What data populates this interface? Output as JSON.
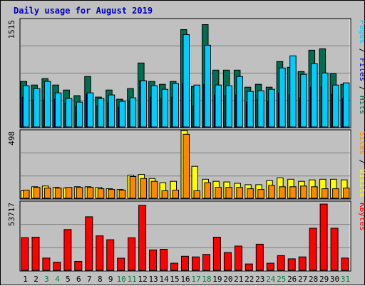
{
  "chart_data": {
    "type": "bar",
    "title": "Daily usage for August 2019",
    "categories": [
      "1",
      "2",
      "3",
      "4",
      "5",
      "6",
      "7",
      "8",
      "9",
      "10",
      "11",
      "12",
      "13",
      "14",
      "15",
      "16",
      "17",
      "18",
      "19",
      "20",
      "21",
      "22",
      "23",
      "24",
      "25",
      "26",
      "27",
      "28",
      "29",
      "30",
      "31"
    ],
    "weekend_categories": [
      "3",
      "4",
      "10",
      "11",
      "17",
      "18",
      "24",
      "25",
      "31"
    ],
    "panels": [
      {
        "id": "top",
        "y_max_label": "1515",
        "ylim": [
          0,
          1515
        ],
        "right_label": {
          "parts": [
            "Pages",
            " / ",
            "Files",
            " / ",
            "Hits"
          ]
        },
        "series": [
          {
            "name": "Hits",
            "color": "#006e50",
            "values": [
              640,
              590,
              680,
              590,
              520,
              440,
              710,
              420,
              520,
              390,
              540,
              900,
              640,
              600,
              640,
              1370,
              570,
              1440,
              800,
              800,
              800,
              560,
              600,
              560,
              920,
              840,
              780,
              1080,
              1100,
              750,
              600
            ]
          },
          {
            "name": "Files",
            "color": "#0000bb",
            "values": [
              420,
              380,
              380,
              390,
              340,
              290,
              460,
              300,
              340,
              280,
              370,
              650,
              420,
              400,
              420,
              610,
              300,
              600,
              450,
              440,
              450,
              350,
              390,
              360,
              480,
              460,
              410,
              560,
              570,
              460,
              400
            ]
          },
          {
            "name": "Pages",
            "color": "#00ccff",
            "values": [
              580,
              540,
              640,
              480,
              400,
              350,
              480,
              400,
              450,
              360,
              410,
              650,
              580,
              530,
              610,
              1300,
              590,
              1150,
              590,
              580,
              710,
              500,
              510,
              530,
              830,
              1000,
              740,
              890,
              760,
              590,
              620
            ]
          }
        ]
      },
      {
        "id": "mid",
        "y_max_label": "498",
        "ylim": [
          0,
          498
        ],
        "right_label": {
          "parts": [
            "Sites",
            " / ",
            "Visits"
          ]
        },
        "series": [
          {
            "name": "Visits",
            "color": "#ffff00",
            "values": [
              55,
              85,
              90,
              80,
              75,
              85,
              85,
              80,
              70,
              65,
              170,
              175,
              145,
              115,
              125,
              498,
              235,
              140,
              125,
              120,
              110,
              100,
              100,
              130,
              150,
              140,
              125,
              135,
              140,
              140,
              135
            ]
          },
          {
            "name": "Sites",
            "color": "#ff8800",
            "values": [
              60,
              80,
              75,
              75,
              80,
              80,
              80,
              70,
              65,
              60,
              160,
              145,
              125,
              55,
              60,
              470,
              55,
              115,
              80,
              80,
              80,
              70,
              65,
              95,
              85,
              85,
              90,
              85,
              70,
              70,
              75
            ]
          }
        ]
      },
      {
        "id": "bot",
        "y_max_label": "53717",
        "ylim": [
          0,
          53717
        ],
        "right_label": {
          "parts": [
            "KBytes"
          ]
        },
        "series": [
          {
            "name": "KBytes",
            "color": "#ff0000",
            "values": [
              25600,
              26000,
              9600,
              6400,
              32000,
              7000,
              42000,
              27000,
              24000,
              9500,
              25500,
              51000,
              16000,
              16500,
              5600,
              11000,
              10500,
              12500,
              26000,
              14000,
              19000,
              5000,
              20500,
              5600,
              11500,
              9000,
              10500,
              33000,
              52000,
              33000,
              9600
            ]
          }
        ]
      }
    ]
  },
  "colors": {
    "background": "#c0c0c0",
    "plot_background": "#c0c0c0",
    "gridline": "#808080",
    "title": "#0000bb",
    "axis_text": "#000000",
    "weekday_label": "#000000",
    "weekend_label": "#008040",
    "label_separator": "#000000",
    "hits": "#006e50",
    "files": "#0000bb",
    "pages": "#00ccff",
    "visits": "#ffff00",
    "sites": "#ff8800",
    "kbytes": "#ff0000"
  }
}
